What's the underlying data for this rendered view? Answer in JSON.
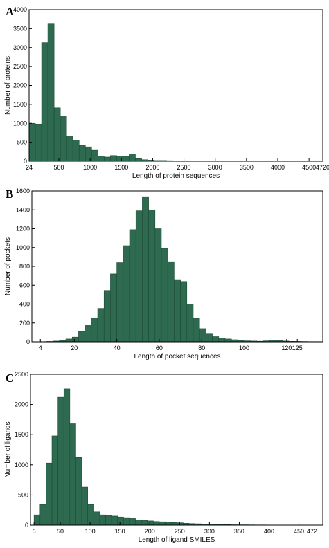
{
  "colors": {
    "bar": "#2d6a4f",
    "bar_edge": "#1e4a36",
    "axis": "#000000"
  },
  "chart_data": [
    {
      "type": "bar",
      "panel_label": "A",
      "title": "",
      "xlabel": "Length of protein sequences",
      "ylabel": "Number of proteins",
      "xlim": [
        24,
        4720
      ],
      "ylim": [
        0,
        4000
      ],
      "xticks": [
        24,
        500,
        1000,
        1500,
        2000,
        2500,
        3000,
        3500,
        4000,
        4500,
        4720
      ],
      "xtick_labels": [
        "24",
        "500",
        "1000",
        "1500",
        "2000",
        "2500",
        "3000",
        "3500",
        "4000",
        "4500",
        "4720"
      ],
      "yticks": [
        0,
        500,
        1000,
        1500,
        2000,
        2500,
        3000,
        3500,
        4000
      ],
      "bin_start": 24,
      "bin_width": 100,
      "values": [
        1000,
        980,
        3130,
        3640,
        1410,
        1200,
        670,
        560,
        420,
        380,
        290,
        140,
        110,
        150,
        140,
        130,
        190,
        70,
        40,
        30,
        20,
        20,
        15,
        12,
        10,
        8,
        10,
        6,
        5,
        5,
        4,
        4,
        3,
        3,
        3,
        2,
        2,
        2,
        2,
        3,
        2,
        1,
        1,
        1,
        1,
        1,
        1
      ]
    },
    {
      "type": "bar",
      "panel_label": "B",
      "title": "",
      "xlabel": "Length of pocket sequences",
      "ylabel": "Number of pockets",
      "xlim": [
        0,
        137
      ],
      "ylim": [
        0,
        1600
      ],
      "xticks": [
        4,
        20,
        40,
        60,
        80,
        100,
        120,
        125
      ],
      "xtick_labels": [
        "4",
        "20",
        "40",
        "60",
        "80",
        "100",
        "120",
        "125"
      ],
      "yticks": [
        0,
        200,
        400,
        600,
        800,
        1000,
        1200,
        1400,
        1600
      ],
      "bin_start": 4,
      "bin_width": 3,
      "values": [
        2,
        4,
        8,
        15,
        30,
        50,
        110,
        180,
        255,
        355,
        545,
        720,
        840,
        1020,
        1190,
        1390,
        1540,
        1400,
        1200,
        990,
        850,
        660,
        640,
        400,
        250,
        140,
        90,
        55,
        40,
        30,
        22,
        15,
        10,
        8,
        6,
        10,
        18,
        12,
        8,
        5,
        4,
        3,
        2,
        2
      ]
    },
    {
      "type": "bar",
      "panel_label": "C",
      "title": "",
      "xlabel": "Length of ligand SMILES",
      "ylabel": "Number of ligands",
      "xlim": [
        0,
        490
      ],
      "ylim": [
        0,
        2500
      ],
      "xticks": [
        6,
        50,
        100,
        150,
        200,
        250,
        300,
        350,
        400,
        450,
        472
      ],
      "xtick_labels": [
        "6",
        "50",
        "100",
        "150",
        "200",
        "250",
        "300",
        "350",
        "400",
        "450",
        "472"
      ],
      "yticks": [
        0,
        500,
        1000,
        1500,
        2000,
        2500
      ],
      "bin_start": 6,
      "bin_width": 10,
      "values": [
        170,
        340,
        1030,
        1480,
        2120,
        2260,
        1680,
        1120,
        630,
        340,
        220,
        170,
        160,
        150,
        135,
        125,
        110,
        85,
        80,
        70,
        60,
        55,
        48,
        42,
        38,
        30,
        25,
        22,
        18,
        15,
        12,
        10,
        8,
        6,
        5,
        5,
        4,
        3,
        3,
        2,
        2,
        2,
        1,
        1,
        1,
        1,
        1
      ]
    }
  ]
}
